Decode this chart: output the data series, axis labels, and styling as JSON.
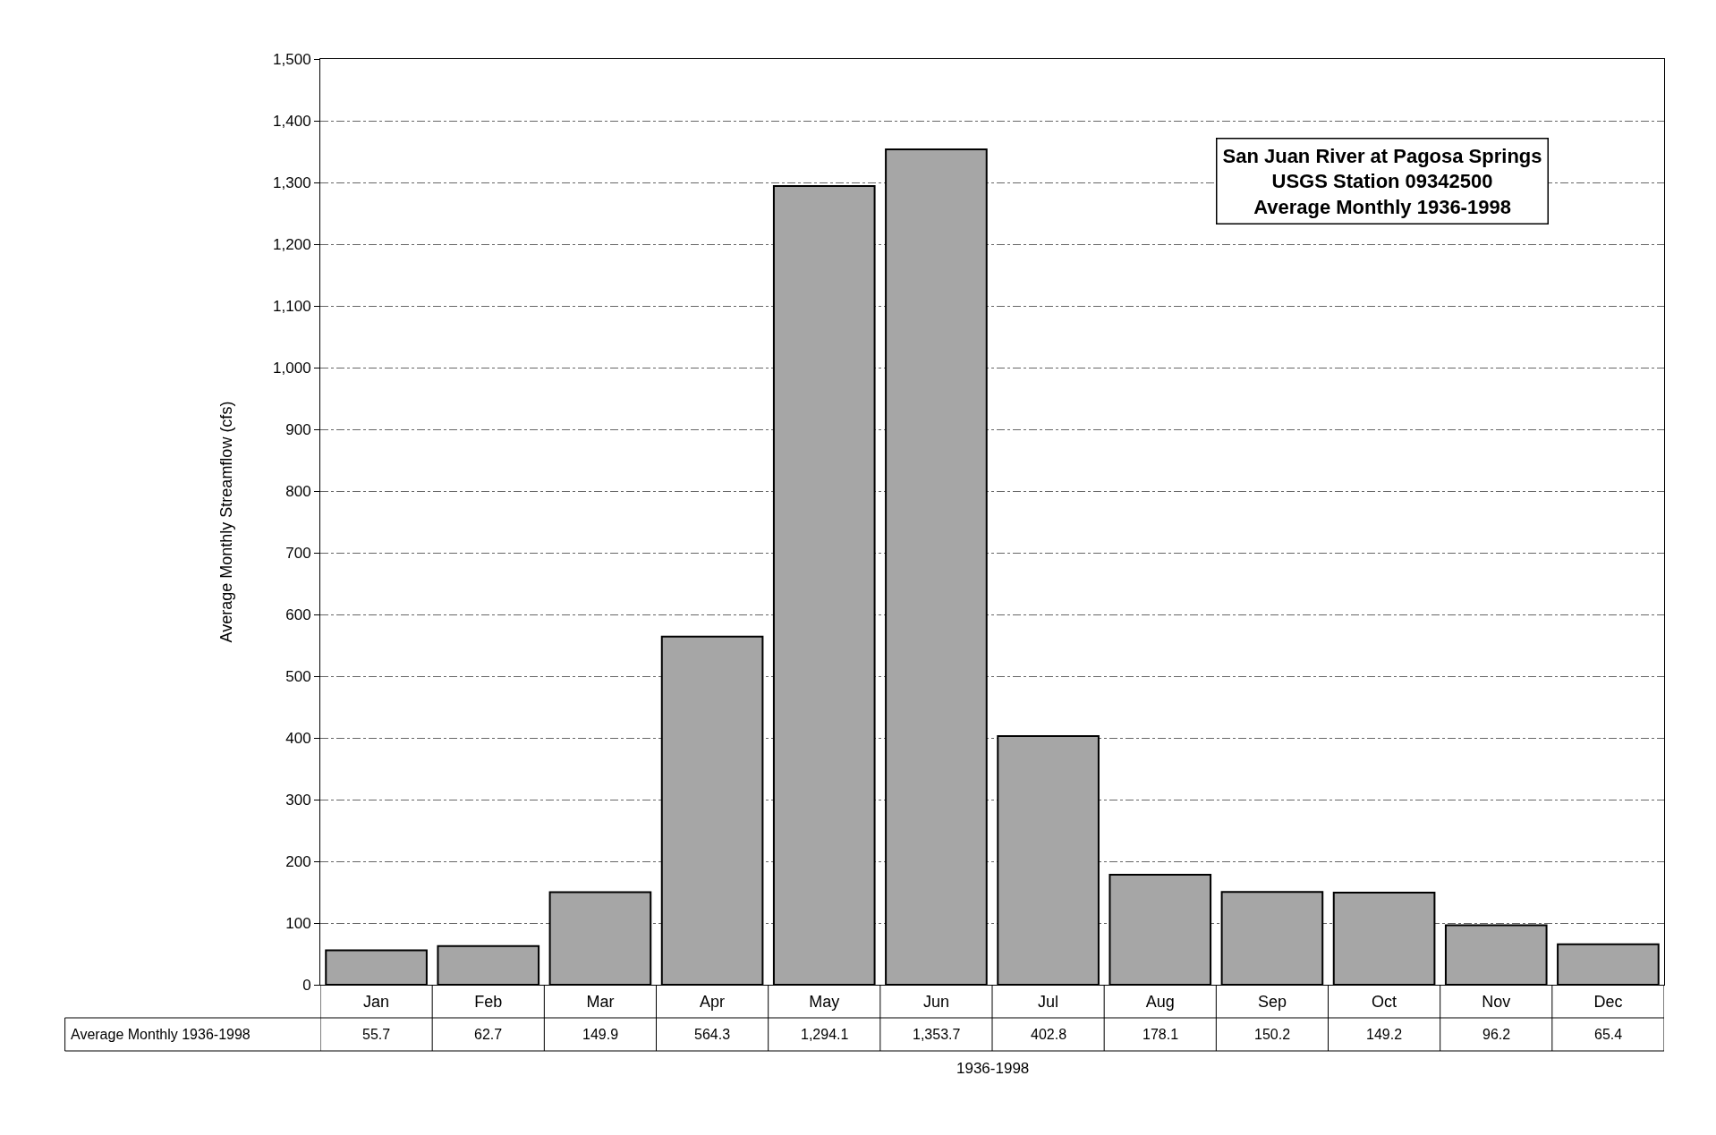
{
  "chart_data": {
    "type": "bar",
    "title": "San Juan River at Pagosa Springs\nUSGS Station 09342500\nAverage Monthly 1936-1998",
    "xlabel": "1936-1998",
    "ylabel": "Average Monthly Streamflow (cfs)",
    "categories": [
      "Jan",
      "Feb",
      "Mar",
      "Apr",
      "May",
      "Jun",
      "Jul",
      "Aug",
      "Sep",
      "Oct",
      "Nov",
      "Dec"
    ],
    "series": [
      {
        "name": "Average Monthly 1936-1998",
        "color": "#a6a6a6",
        "values": [
          55.7,
          62.7,
          149.9,
          564.3,
          1294.1,
          1353.7,
          402.8,
          178.1,
          150.2,
          149.2,
          96.2,
          65.4
        ],
        "value_labels": [
          "55.7",
          "62.7",
          "149.9",
          "564.3",
          "1,294.1",
          "1,353.7",
          "402.8",
          "178.1",
          "150.2",
          "149.2",
          "96.2",
          "65.4"
        ]
      }
    ],
    "ylim": [
      0,
      1500
    ],
    "yticks": [
      0,
      100,
      200,
      300,
      400,
      500,
      600,
      700,
      800,
      900,
      {
        "value": 1000,
        "label": "1,000"
      },
      {
        "value": 1100,
        "label": "1,100"
      },
      {
        "value": 1200,
        "label": "1,200"
      },
      {
        "value": 1300,
        "label": "1,300"
      },
      {
        "value": 1400,
        "label": "1,400"
      },
      {
        "value": 1500,
        "label": "1,500"
      }
    ],
    "grid": "y"
  }
}
